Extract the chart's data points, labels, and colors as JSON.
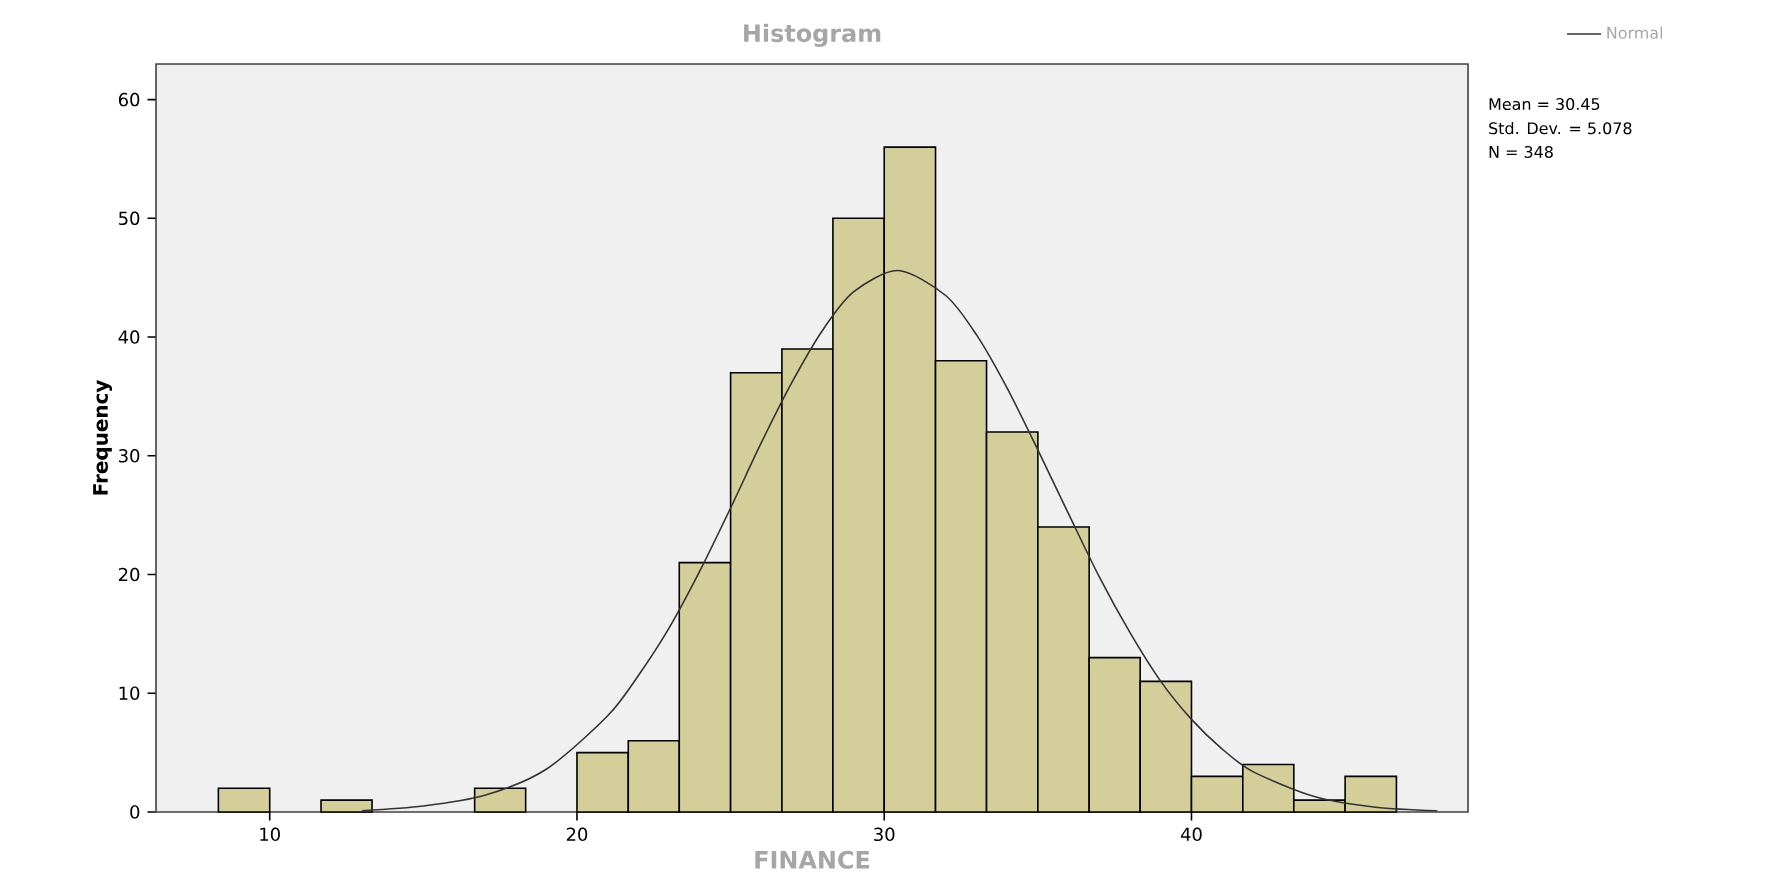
{
  "chart_data": {
    "type": "histogram",
    "title": "Histogram",
    "xlabel": "FINANCE",
    "ylabel": "Frequency",
    "bins": [
      8.33,
      10,
      11.67,
      13.33,
      15,
      16.67,
      18.33,
      20,
      21.67,
      23.33,
      25,
      26.67,
      28.33,
      30,
      31.67,
      33.33,
      35,
      36.67,
      38.33,
      40,
      41.67,
      43.33,
      45,
      46.67
    ],
    "values": [
      2,
      0,
      1,
      0,
      0,
      2,
      0,
      5,
      6,
      21,
      37,
      39,
      50,
      56,
      38,
      32,
      24,
      13,
      11,
      3,
      4,
      1,
      3
    ],
    "color": "#d4cf9a",
    "series": [
      {
        "type": "line",
        "name": "Normal",
        "color": "#333333",
        "x": [
          13,
          15,
          17,
          19,
          21,
          22,
          23,
          24,
          25,
          26,
          27,
          28,
          29,
          30.45,
          32,
          33,
          34,
          35,
          36,
          37,
          38,
          39,
          40,
          41,
          42,
          44,
          46,
          48
        ],
        "values": [
          0.1,
          0.5,
          1.4,
          3.6,
          8.1,
          11.5,
          15.5,
          20.3,
          25.6,
          31.1,
          36.2,
          40.6,
          43.8,
          45.6,
          43.5,
          40.2,
          35.7,
          30.5,
          25.1,
          19.8,
          15.1,
          11,
          7.8,
          5.3,
          3.4,
          1.3,
          0.4,
          0.1
        ]
      }
    ],
    "annotations": [
      "Mean = 30.45",
      "Std. Dev. = 5.078",
      "N = 348"
    ],
    "xlim": [
      6.3,
      49
    ],
    "ylim": [
      0,
      63
    ],
    "xticks": [
      10,
      20,
      30,
      40
    ],
    "yticks": [
      0,
      10,
      20,
      30,
      40,
      50,
      60
    ],
    "legend": "top right",
    "marker": "none",
    "line_style": "solid"
  }
}
